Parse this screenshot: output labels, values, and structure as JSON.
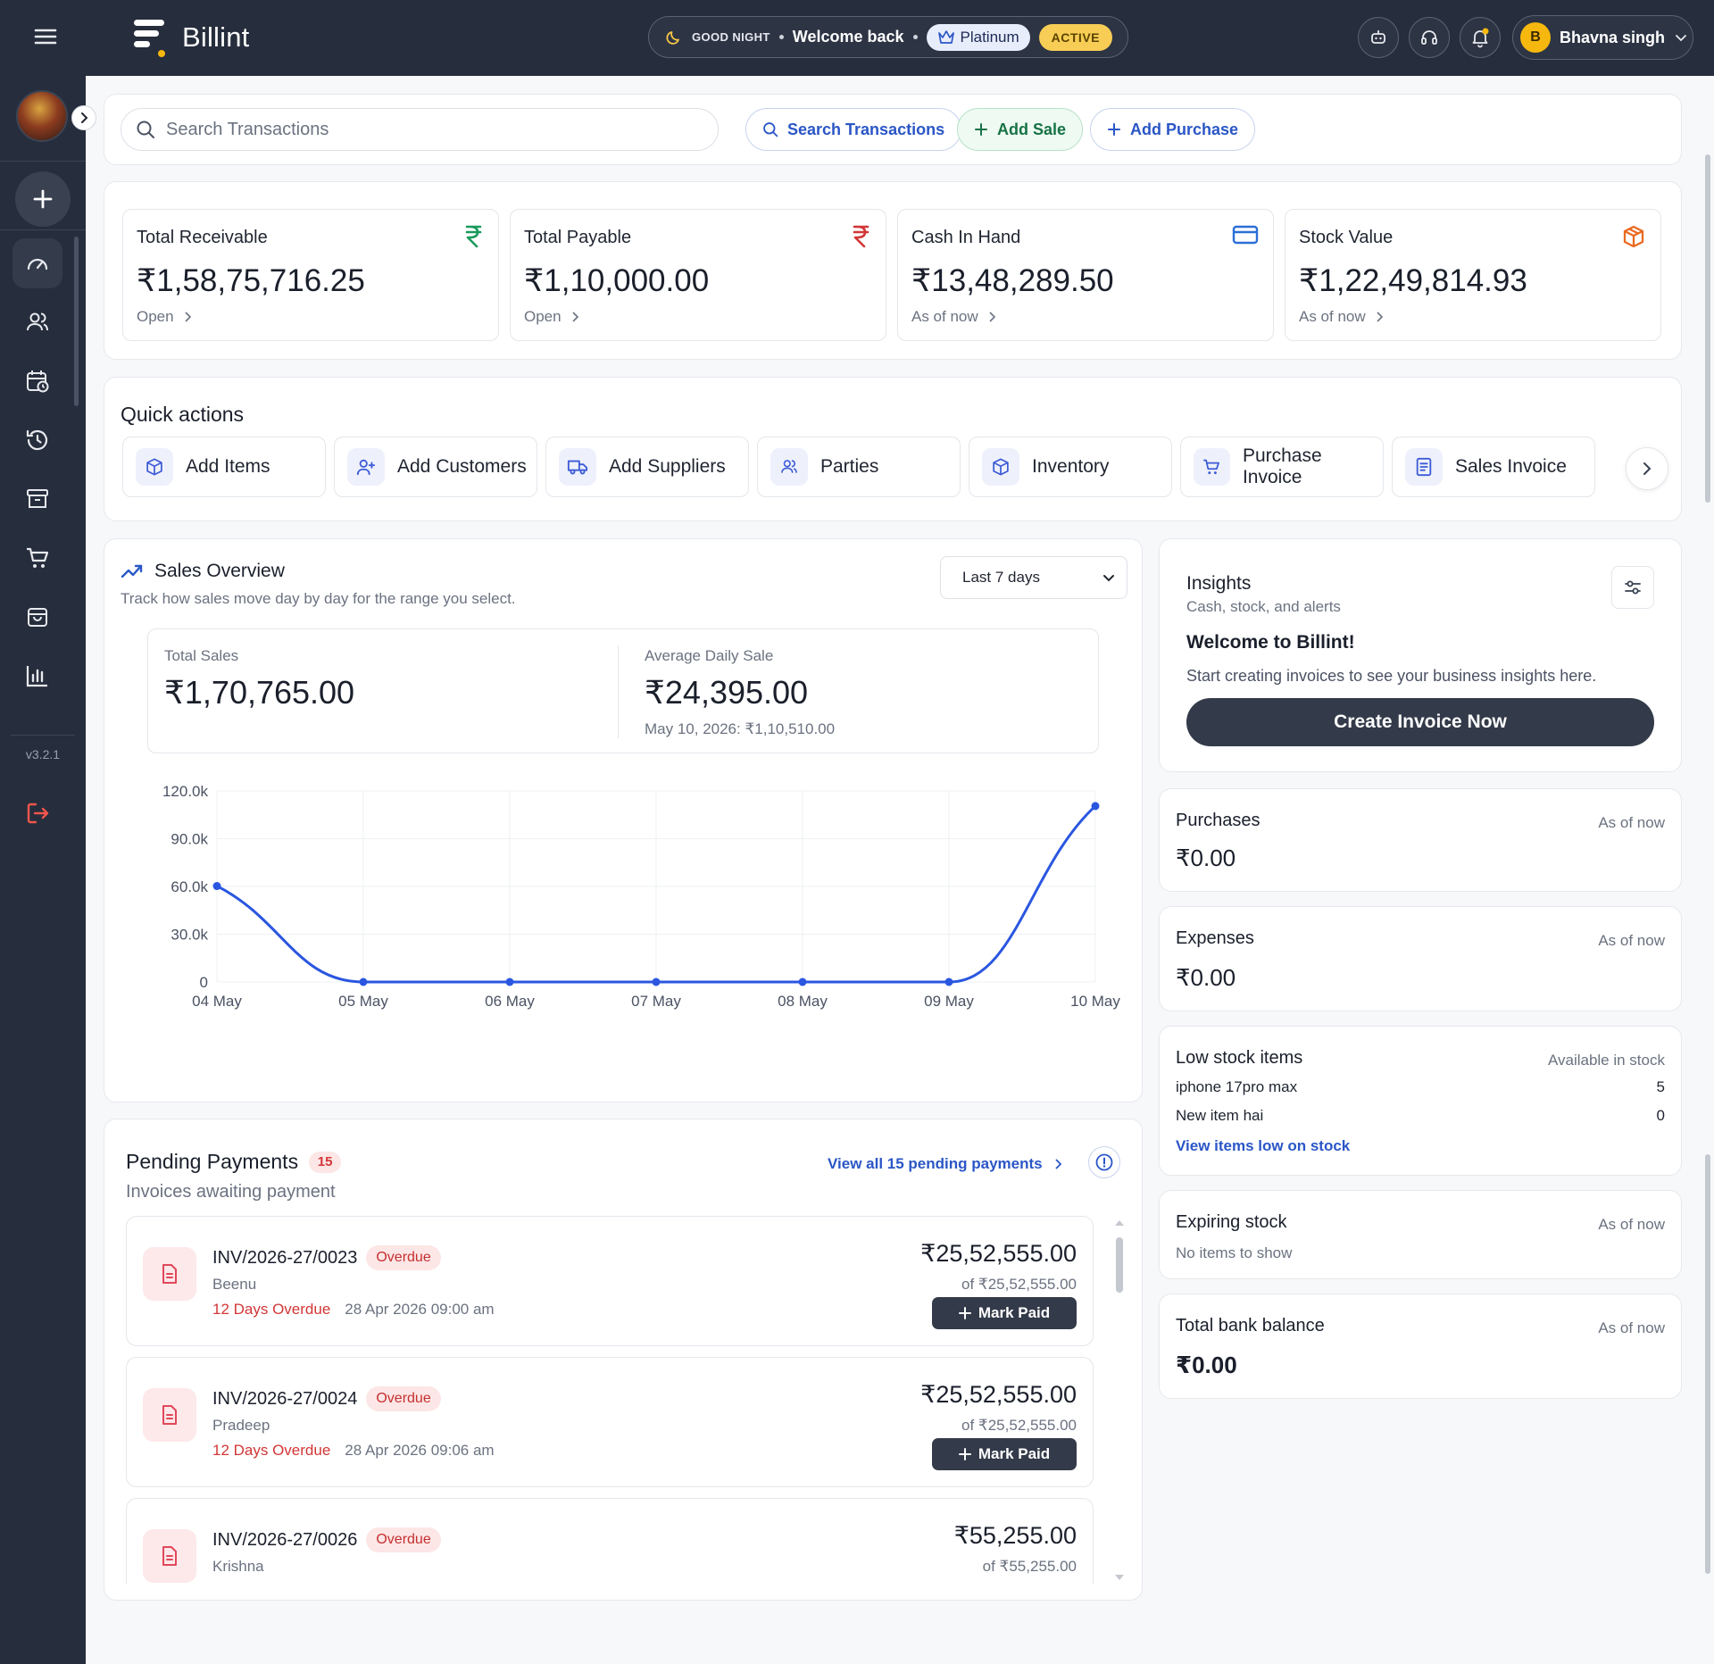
{
  "app": {
    "name": "Billint",
    "version": "v3.2.1"
  },
  "header": {
    "greeting": "GOOD NIGHT",
    "welcome": "Welcome back",
    "plan": "Platinum",
    "plan_status": "ACTIVE",
    "user": {
      "initial": "B",
      "name": "Bhavna singh"
    }
  },
  "search": {
    "placeholder": "Search Transactions",
    "search_button": "Search Transactions",
    "add_sale": "Add Sale",
    "add_purchase": "Add Purchase"
  },
  "kpis": [
    {
      "label": "Total Receivable",
      "value": "₹1,58,75,716.25",
      "sub": "Open",
      "icon": "rupee-icon",
      "color": "#1a9a5c"
    },
    {
      "label": "Total Payable",
      "value": "₹1,10,000.00",
      "sub": "Open",
      "icon": "rupee-icon",
      "color": "#d23636"
    },
    {
      "label": "Cash In Hand",
      "value": "₹13,48,289.50",
      "sub": "As of now",
      "icon": "card-icon",
      "color": "#2a6fd6"
    },
    {
      "label": "Stock Value",
      "value": "₹1,22,49,814.93",
      "sub": "As of now",
      "icon": "box-icon",
      "color": "#ea6a1f"
    }
  ],
  "quick_actions": {
    "title": "Quick actions",
    "items": [
      "Add Items",
      "Add Customers",
      "Add Suppliers",
      "Parties",
      "Inventory",
      "Purchase Invoice",
      "Sales Invoice"
    ]
  },
  "sales_overview": {
    "title": "Sales Overview",
    "subtitle": "Track how sales move day by day for the range you select.",
    "range": "Last 7 days",
    "total_label": "Total Sales",
    "total_value": "₹1,70,765.00",
    "avg_label": "Average Daily Sale",
    "avg_value": "₹24,395.00",
    "peak_note": "May 10, 2026: ₹1,10,510.00"
  },
  "chart_data": {
    "type": "line",
    "x": [
      "04 May",
      "05 May",
      "06 May",
      "07 May",
      "08 May",
      "09 May",
      "10 May"
    ],
    "series": [
      {
        "values": [
          60255,
          0,
          0,
          0,
          0,
          0,
          110510
        ]
      }
    ],
    "yticks": [
      "0",
      "30.0k",
      "60.0k",
      "90.0k",
      "120.0k"
    ],
    "ylim": [
      0,
      120000
    ],
    "grid": true,
    "color": "#2a56e0"
  },
  "insights": {
    "title": "Insights",
    "subtitle": "Cash, stock, and alerts",
    "welcome": "Welcome to Billint!",
    "description": "Start creating invoices to see your business insights here.",
    "cta": "Create Invoice Now"
  },
  "purchases": {
    "title": "Purchases",
    "as_of": "As of now",
    "value": "₹0.00"
  },
  "expenses": {
    "title": "Expenses",
    "as_of": "As of now",
    "value": "₹0.00"
  },
  "low_stock": {
    "title": "Low stock items",
    "header_right": "Available in stock",
    "items": [
      {
        "name": "iphone 17pro max",
        "qty": "5"
      },
      {
        "name": "New item hai",
        "qty": "0"
      }
    ],
    "link": "View items low on stock"
  },
  "expiring": {
    "title": "Expiring stock",
    "as_of": "As of now",
    "empty": "No items to show"
  },
  "bank": {
    "title": "Total bank balance",
    "as_of": "As of now",
    "value": "₹0.00"
  },
  "pending": {
    "title": "Pending Payments",
    "count": "15",
    "subtitle": "Invoices awaiting payment",
    "view_all": "View all 15 pending payments",
    "mark_paid": "Mark Paid",
    "items": [
      {
        "invoice": "INV/2026-27/0023",
        "status": "Overdue",
        "party": "Beenu",
        "overdue": "12 Days Overdue",
        "date": "28 Apr 2026 09:00 am",
        "amount": "₹25,52,555.00",
        "of": "of ₹25,52,555.00"
      },
      {
        "invoice": "INV/2026-27/0024",
        "status": "Overdue",
        "party": "Pradeep",
        "overdue": "12 Days Overdue",
        "date": "28 Apr 2026 09:06 am",
        "amount": "₹25,52,555.00",
        "of": "of ₹25,52,555.00"
      },
      {
        "invoice": "INV/2026-27/0026",
        "status": "Overdue",
        "party": "Krishna",
        "overdue": "",
        "date": "",
        "amount": "₹55,255.00",
        "of": "of ₹55,255.00"
      }
    ]
  }
}
